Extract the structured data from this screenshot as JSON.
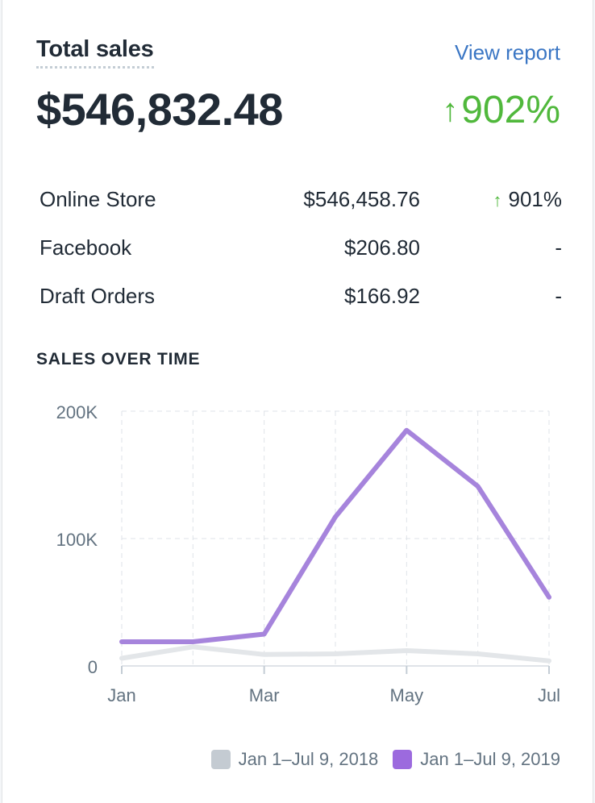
{
  "card": {
    "title": "Total sales",
    "view_report_label": "View report",
    "total": "$546,832.48",
    "change_arrow": "↑",
    "change": "902%"
  },
  "breakdown": [
    {
      "name": "Online Store",
      "amount": "$546,458.76",
      "arrow": "↑",
      "pct": "901%"
    },
    {
      "name": "Facebook",
      "amount": "$206.80",
      "arrow": "",
      "pct": "-"
    },
    {
      "name": "Draft Orders",
      "amount": "$166.92",
      "arrow": "",
      "pct": "-"
    }
  ],
  "section_label": "SALES OVER TIME",
  "colors": {
    "series_2018": "#e3e6e9",
    "series_2019": "#a684dc",
    "swatch_2018": "#c4cbd2",
    "swatch_2019": "#9c6ade",
    "positive": "#50b83c",
    "link": "#3a76c4"
  },
  "chart_data": {
    "type": "line",
    "x": [
      0,
      1,
      2,
      3,
      4,
      5,
      6
    ],
    "xtick_labels": [
      {
        "x": 0,
        "label": "Jan"
      },
      {
        "x": 2,
        "label": "Mar"
      },
      {
        "x": 4,
        "label": "May"
      },
      {
        "x": 6,
        "label": "Jul"
      }
    ],
    "yticks": [
      {
        "value": 0,
        "label": "0"
      },
      {
        "value": 100000,
        "label": "100K"
      },
      {
        "value": 200000,
        "label": "200K"
      }
    ],
    "ylim": [
      0,
      200000
    ],
    "grid": true,
    "series": [
      {
        "name": "Jan 1–Jul 9, 2018",
        "values": [
          6000,
          15000,
          9000,
          9500,
          12000,
          9500,
          4000
        ]
      },
      {
        "name": "Jan 1–Jul 9, 2019",
        "values": [
          19000,
          19000,
          25000,
          117000,
          185000,
          141000,
          54000
        ]
      }
    ],
    "legend_position": "bottom-right"
  }
}
